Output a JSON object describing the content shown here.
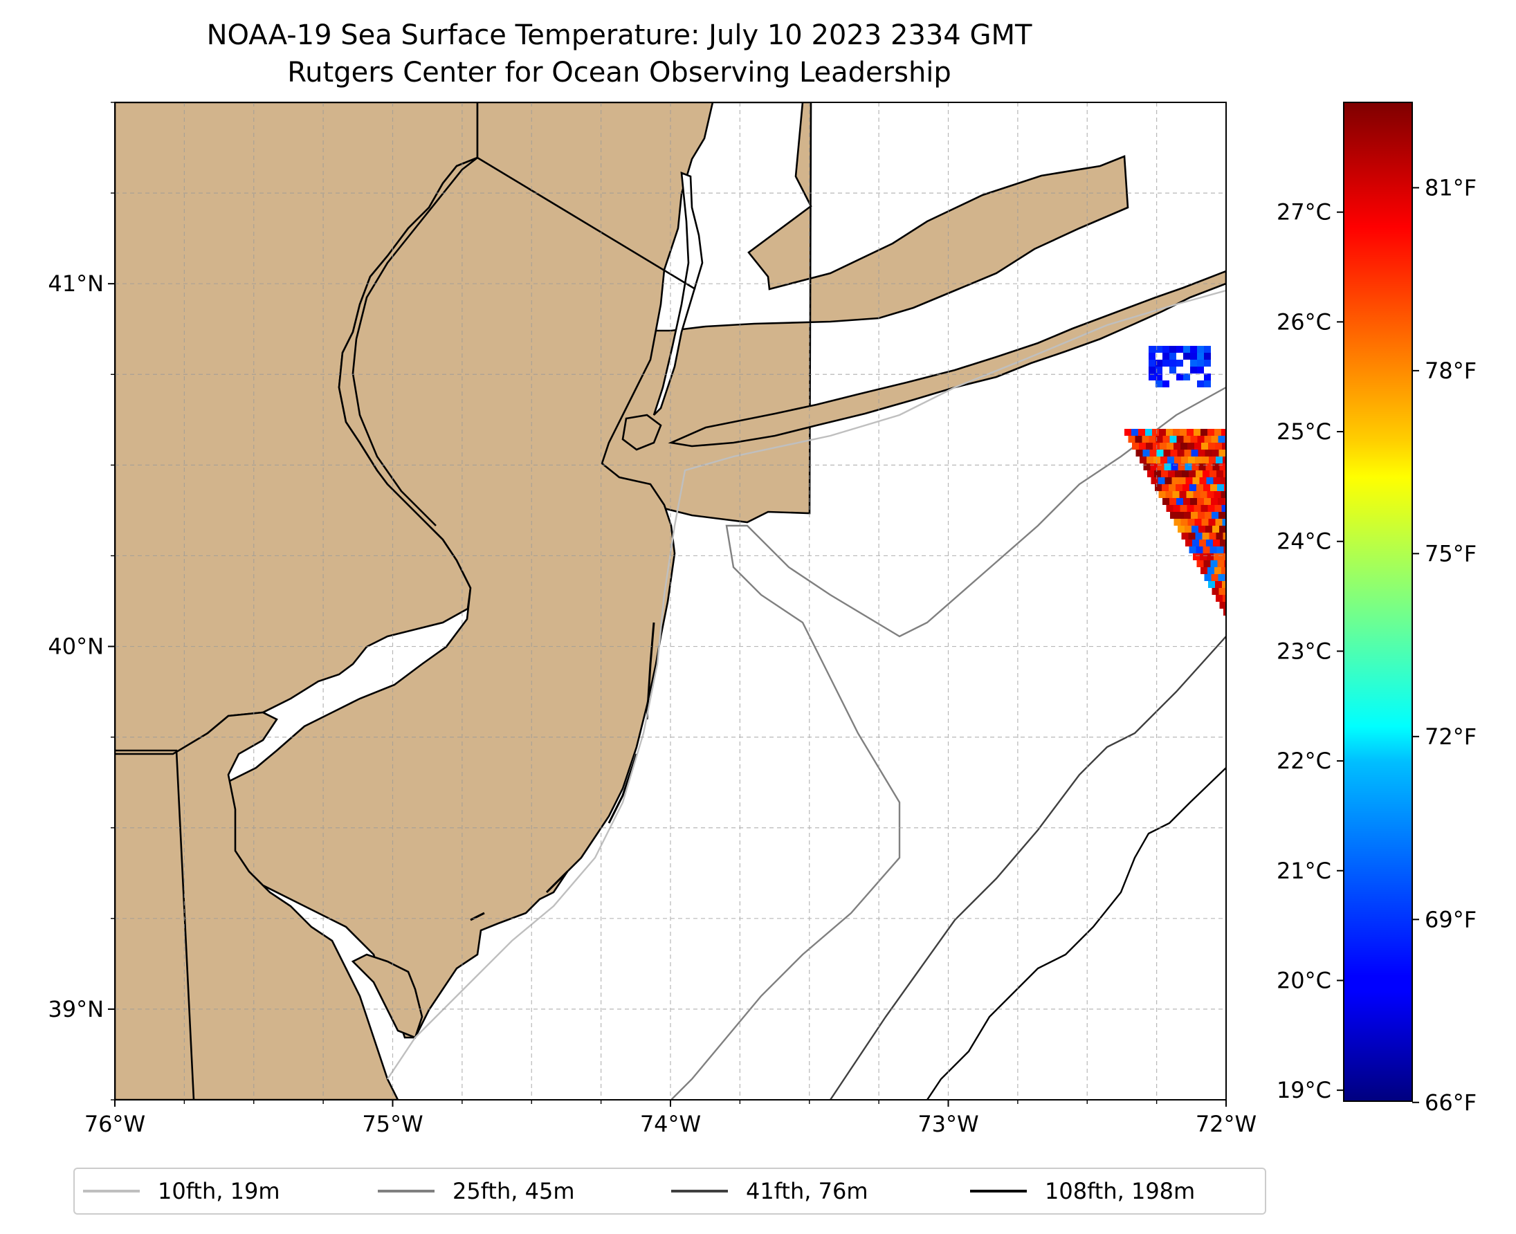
{
  "title": "NOAA-19 Sea Surface Temperature: July 10 2023 2334 GMT",
  "subtitle": "Rutgers Center for Ocean Observing Leadership",
  "map": {
    "lon_range": [
      -76,
      -72
    ],
    "lat_range": [
      38.75,
      41.5
    ],
    "land_color": "#d2b48c",
    "water_color": "#ffffff",
    "gridlines": true,
    "lon_ticks": [
      {
        "value": -76,
        "label": "76°W"
      },
      {
        "value": -75,
        "label": "75°W"
      },
      {
        "value": -74,
        "label": "74°W"
      },
      {
        "value": -73,
        "label": "73°W"
      },
      {
        "value": -72,
        "label": "72°W"
      }
    ],
    "lat_ticks": [
      {
        "value": 41,
        "label": "41°N"
      },
      {
        "value": 40,
        "label": "40°N"
      },
      {
        "value": 39,
        "label": "39°N"
      }
    ]
  },
  "colorbar": {
    "colormap": "jet",
    "range_c": [
      18.9,
      28.0
    ],
    "celsius_ticks": [
      {
        "value": 19,
        "label": "19°C"
      },
      {
        "value": 20,
        "label": "20°C"
      },
      {
        "value": 21,
        "label": "21°C"
      },
      {
        "value": 22,
        "label": "22°C"
      },
      {
        "value": 23,
        "label": "23°C"
      },
      {
        "value": 24,
        "label": "24°C"
      },
      {
        "value": 25,
        "label": "25°C"
      },
      {
        "value": 26,
        "label": "26°C"
      },
      {
        "value": 27,
        "label": "27°C"
      }
    ],
    "fahrenheit_ticks": [
      {
        "value": 66,
        "label": "66°F"
      },
      {
        "value": 69,
        "label": "69°F"
      },
      {
        "value": 72,
        "label": "72°F"
      },
      {
        "value": 75,
        "label": "75°F"
      },
      {
        "value": 78,
        "label": "78°F"
      },
      {
        "value": 81,
        "label": "81°F"
      }
    ]
  },
  "legend": {
    "placement": "bottom",
    "items": [
      {
        "label": "10fth, 19m",
        "color": "#bfbfbf"
      },
      {
        "label": "25fth, 45m",
        "color": "#808080"
      },
      {
        "label": "41fth, 76m",
        "color": "#404040"
      },
      {
        "label": "108fth, 198m",
        "color": "#000000"
      }
    ]
  }
}
